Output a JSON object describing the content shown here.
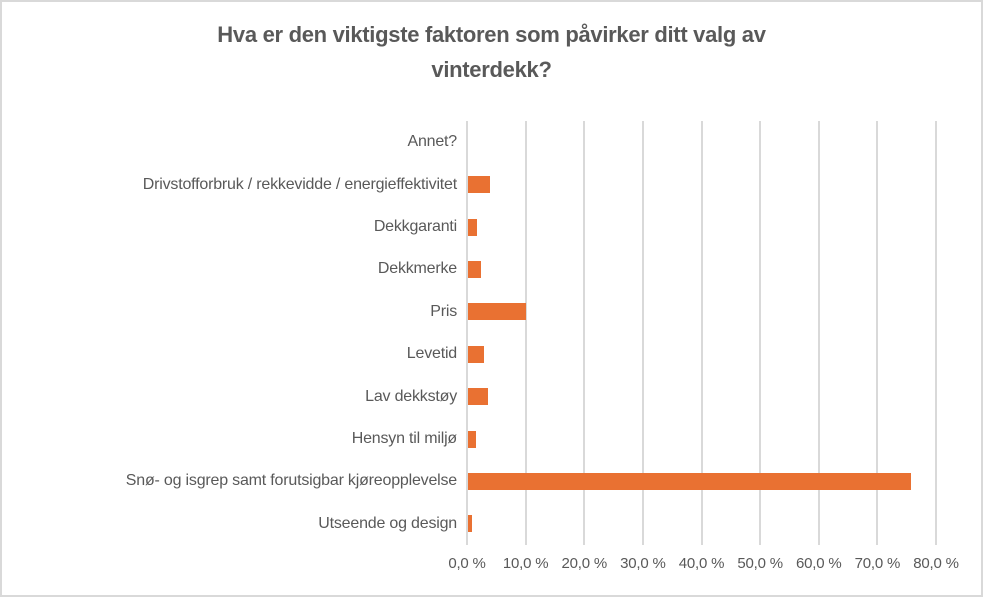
{
  "chart_data": {
    "type": "bar",
    "orientation": "horizontal",
    "title": "Hva er den viktigste faktoren som påvirker ditt valg av vinterdekk?",
    "xlabel": "",
    "ylabel": "",
    "xlim": [
      0,
      80
    ],
    "grid": true,
    "unit": "%",
    "legend": "none",
    "categories": [
      "Annet?",
      "Drivstofforbruk / rekkevidde / energieffektivitet",
      "Dekkgaranti",
      "Dekkmerke",
      "Pris",
      "Levetid",
      "Lav dekkstøy",
      "Hensyn til miljø",
      "Snø- og isgrep samt forutsigbar kjøreopplevelse",
      "Utseende og design"
    ],
    "values": [
      0.0,
      3.8,
      1.6,
      2.3,
      9.9,
      2.7,
      3.4,
      1.4,
      75.5,
      0.7
    ],
    "x_ticks": [
      {
        "label": "0,0 %",
        "value": 0
      },
      {
        "label": "10,0 %",
        "value": 10
      },
      {
        "label": "20,0 %",
        "value": 20
      },
      {
        "label": "30,0 %",
        "value": 30
      },
      {
        "label": "40,0 %",
        "value": 40
      },
      {
        "label": "50,0 %",
        "value": 50
      },
      {
        "label": "60,0 %",
        "value": 60
      },
      {
        "label": "70,0 %",
        "value": 70
      },
      {
        "label": "80,0 %",
        "value": 80
      }
    ],
    "colors": {
      "bar": "#E97132",
      "grid": "#D9D9D9",
      "text": "#595959",
      "title": "#595959",
      "border": "#D9D9D9"
    }
  }
}
